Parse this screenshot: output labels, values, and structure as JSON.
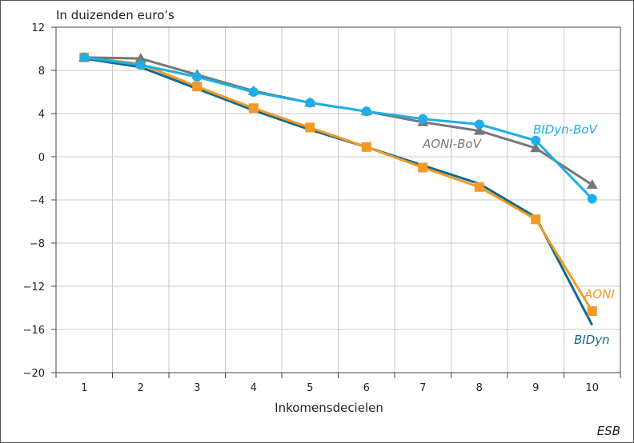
{
  "chart_data": {
    "type": "line",
    "ylabel": "In duizenden euro’s",
    "xlabel": "Inkomensdecielen",
    "source": "ESB",
    "x": [
      1,
      2,
      3,
      4,
      5,
      6,
      7,
      8,
      9,
      10
    ],
    "xtick_labels": [
      "1",
      "2",
      "3",
      "4",
      "5",
      "6",
      "7",
      "8",
      "9",
      "10"
    ],
    "ylim": [
      -20,
      12
    ],
    "yticks": [
      12,
      8,
      4,
      0,
      -4,
      -8,
      -12,
      -16,
      -20
    ],
    "ytick_labels": [
      "12",
      "8",
      "4",
      "0",
      "−4",
      "−8",
      "−12",
      "−16",
      "−20"
    ],
    "grid": true,
    "series": [
      {
        "name": "BIDyn",
        "color": "#0e6a8c",
        "marker": "none",
        "values": [
          9.1,
          8.3,
          6.3,
          4.3,
          2.5,
          0.9,
          -0.8,
          -2.5,
          -5.6,
          -15.6
        ]
      },
      {
        "name": "AONI",
        "color": "#f39a26",
        "marker": "square",
        "values": [
          9.2,
          8.6,
          6.5,
          4.5,
          2.7,
          0.9,
          -1.0,
          -2.8,
          -5.8,
          -14.3
        ]
      },
      {
        "name": "AONI-BoV",
        "color": "#777777",
        "marker": "triangle",
        "values": [
          9.2,
          9.1,
          7.6,
          6.1,
          5.0,
          4.2,
          3.2,
          2.4,
          0.8,
          -2.6
        ]
      },
      {
        "name": "BIDyn-BoV",
        "color": "#1daee8",
        "marker": "circle",
        "values": [
          9.2,
          8.5,
          7.4,
          6.0,
          5.0,
          4.2,
          3.5,
          3.0,
          1.5,
          -3.9
        ]
      }
    ]
  }
}
